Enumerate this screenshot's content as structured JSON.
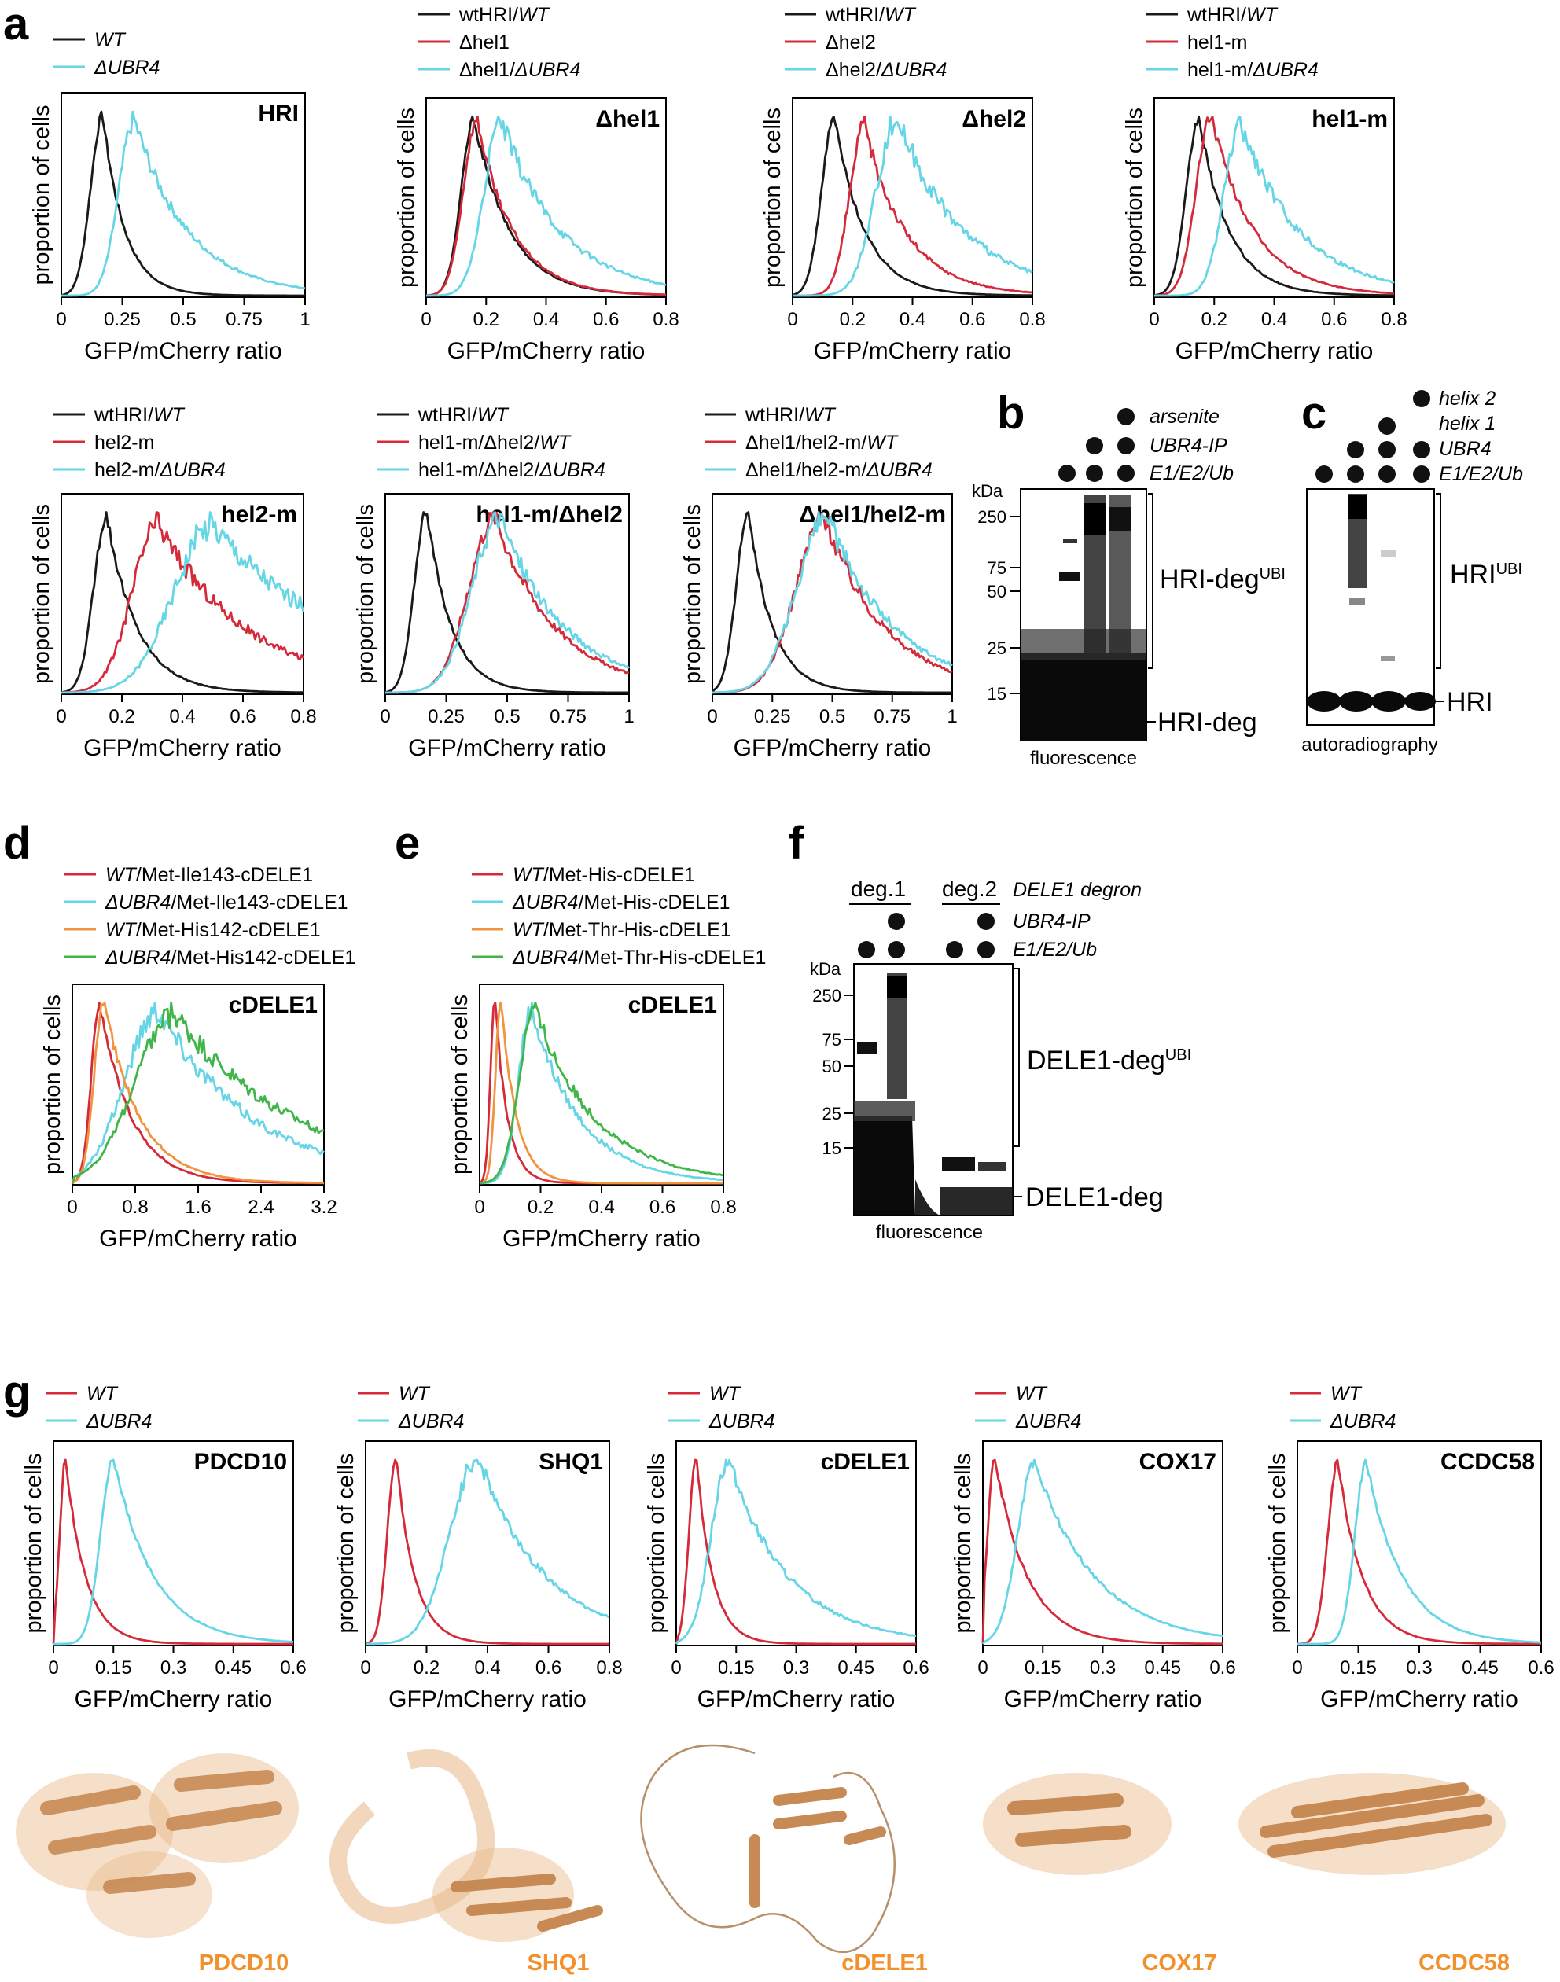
{
  "colors": {
    "black": "#1a1a1a",
    "red": "#d42a3a",
    "cyan": "#66d6e6",
    "orange": "#f0943e",
    "green": "#3fb54a",
    "protein": "#e8b787",
    "protein_label": "#f0912d"
  },
  "panel_letters": [
    "a",
    "b",
    "c",
    "d",
    "e",
    "f",
    "g"
  ],
  "common": {
    "ylabel": "proportion of cells",
    "xlabel": "GFP/mCherry ratio"
  },
  "chart_data": [
    {
      "id": "a1",
      "type": "line",
      "title": "HRI",
      "xlim": [
        0,
        1
      ],
      "ticks": [
        "0",
        "0.25",
        "0.5",
        "0.75",
        "1"
      ],
      "tickvals": [
        0,
        0.25,
        0.5,
        0.75,
        1
      ],
      "legend": [
        {
          "name": "WT",
          "italic": true
        },
        {
          "name": "ΔUBR4",
          "italic": true
        }
      ],
      "series": [
        {
          "name": "WT",
          "color": "black",
          "peak": 0.17,
          "w": 0.07,
          "tail": 0.09,
          "noise": 0.03
        },
        {
          "name": "ΔUBR4",
          "color": "cyan",
          "peak": 0.3,
          "w": 0.09,
          "tail": 0.22,
          "noise": 0.06
        }
      ]
    },
    {
      "id": "a2",
      "type": "line",
      "title": "Δhel1",
      "xlim": [
        0,
        0.8
      ],
      "ticks": [
        "0",
        "0.2",
        "0.4",
        "0.6",
        "0.8"
      ],
      "tickvals": [
        0,
        0.2,
        0.4,
        0.6,
        0.8
      ],
      "legend": [
        {
          "name": "wtHRI/WT"
        },
        {
          "name": "Δhel1"
        },
        {
          "name": "Δhel1/ΔUBR4"
        }
      ],
      "series": [
        {
          "name": "wtHRI/WT",
          "color": "black",
          "peak": 0.16,
          "w": 0.06,
          "tail": 0.12,
          "noise": 0.03
        },
        {
          "name": "Δhel1",
          "color": "red",
          "peak": 0.17,
          "w": 0.065,
          "tail": 0.12,
          "noise": 0.04
        },
        {
          "name": "Δhel1/ΔUBR4",
          "color": "cyan",
          "peak": 0.25,
          "w": 0.08,
          "tail": 0.2,
          "noise": 0.07
        }
      ]
    },
    {
      "id": "a3",
      "type": "line",
      "title": "Δhel2",
      "xlim": [
        0,
        0.8
      ],
      "ticks": [
        "0",
        "0.2",
        "0.4",
        "0.6",
        "0.8"
      ],
      "tickvals": [
        0,
        0.2,
        0.4,
        0.6,
        0.8
      ],
      "legend": [
        {
          "name": "wtHRI/WT"
        },
        {
          "name": "Δhel2"
        },
        {
          "name": "Δhel2/ΔUBR4"
        }
      ],
      "series": [
        {
          "name": "wtHRI/WT",
          "color": "black",
          "peak": 0.14,
          "w": 0.06,
          "tail": 0.1,
          "noise": 0.03
        },
        {
          "name": "Δhel2",
          "color": "red",
          "peak": 0.24,
          "w": 0.07,
          "tail": 0.14,
          "noise": 0.06
        },
        {
          "name": "Δhel2/ΔUBR4",
          "color": "cyan",
          "peak": 0.35,
          "w": 0.1,
          "tail": 0.22,
          "noise": 0.08
        }
      ]
    },
    {
      "id": "a4",
      "type": "line",
      "title": "hel1-m",
      "xlim": [
        0,
        0.8
      ],
      "ticks": [
        "0",
        "0.2",
        "0.4",
        "0.6",
        "0.8"
      ],
      "tickvals": [
        0,
        0.2,
        0.4,
        0.6,
        0.8
      ],
      "legend": [
        {
          "name": "wtHRI/WT"
        },
        {
          "name": "hel1-m"
        },
        {
          "name": "hel1-m/ΔUBR4"
        }
      ],
      "series": [
        {
          "name": "wtHRI/WT",
          "color": "black",
          "peak": 0.15,
          "w": 0.06,
          "tail": 0.1,
          "noise": 0.03
        },
        {
          "name": "hel1-m",
          "color": "red",
          "peak": 0.19,
          "w": 0.07,
          "tail": 0.14,
          "noise": 0.04
        },
        {
          "name": "hel1-m/ΔUBR4",
          "color": "cyan",
          "peak": 0.29,
          "w": 0.08,
          "tail": 0.2,
          "noise": 0.07
        }
      ]
    },
    {
      "id": "a5",
      "type": "line",
      "title": "hel2-m",
      "xlim": [
        0,
        0.8
      ],
      "ticks": [
        "0",
        "0.2",
        "0.4",
        "0.6",
        "0.8"
      ],
      "tickvals": [
        0,
        0.2,
        0.4,
        0.6,
        0.8
      ],
      "legend": [
        {
          "name": "wtHRI/WT"
        },
        {
          "name": "hel2-m"
        },
        {
          "name": "hel2-m/ΔUBR4",
          "italic_suffix": true
        }
      ],
      "series": [
        {
          "name": "wtHRI/WT",
          "color": "black",
          "peak": 0.15,
          "w": 0.06,
          "tail": 0.1,
          "noise": 0.04
        },
        {
          "name": "hel2-m",
          "color": "red",
          "peak": 0.32,
          "w": 0.12,
          "tail": 0.3,
          "noise": 0.08
        },
        {
          "name": "hel2-m/ΔUBR4",
          "color": "cyan",
          "peak": 0.5,
          "w": 0.18,
          "tail": 0.45,
          "noise": 0.09
        }
      ]
    },
    {
      "id": "a6",
      "type": "line",
      "title": "hel1-m/Δhel2",
      "xlim": [
        0,
        1
      ],
      "ticks": [
        "0",
        "0.25",
        "0.5",
        "0.75",
        "1"
      ],
      "tickvals": [
        0,
        0.25,
        0.5,
        0.75,
        1
      ],
      "legend": [
        {
          "name": "wtHRI/WT"
        },
        {
          "name": "hel1-m/Δhel2/WT"
        },
        {
          "name": "hel1-m/Δhel2/ΔUBR4"
        }
      ],
      "series": [
        {
          "name": "wtHRI/WT",
          "color": "black",
          "peak": 0.17,
          "w": 0.07,
          "tail": 0.1,
          "noise": 0.03
        },
        {
          "name": "hel1-m/Δhel2/WT",
          "color": "red",
          "peak": 0.45,
          "w": 0.15,
          "tail": 0.25,
          "noise": 0.06
        },
        {
          "name": "hel1-m/Δhel2/ΔUBR4",
          "color": "cyan",
          "peak": 0.47,
          "w": 0.16,
          "tail": 0.27,
          "noise": 0.07
        }
      ]
    },
    {
      "id": "a7",
      "type": "line",
      "title": "Δhel1/hel2-m",
      "xlim": [
        0,
        1
      ],
      "ticks": [
        "0",
        "0.25",
        "0.5",
        "0.75",
        "1"
      ],
      "tickvals": [
        0,
        0.25,
        0.5,
        0.75,
        1
      ],
      "legend": [
        {
          "name": "wtHRI/WT"
        },
        {
          "name": "Δhel1/hel2-m/WT"
        },
        {
          "name": "Δhel1/hel2-m/ΔUBR4"
        }
      ],
      "series": [
        {
          "name": "wtHRI/WT",
          "color": "black",
          "peak": 0.15,
          "w": 0.07,
          "tail": 0.1,
          "noise": 0.03
        },
        {
          "name": "Δhel1/hel2-m/WT",
          "color": "red",
          "peak": 0.47,
          "w": 0.17,
          "tail": 0.25,
          "noise": 0.07
        },
        {
          "name": "Δhel1/hel2-m/ΔUBR4",
          "color": "cyan",
          "peak": 0.48,
          "w": 0.18,
          "tail": 0.28,
          "noise": 0.07
        }
      ]
    },
    {
      "id": "d",
      "type": "line",
      "title": "cDELE1",
      "xlim": [
        0,
        3.2
      ],
      "ticks": [
        "0",
        "0.8",
        "1.6",
        "2.4",
        "3.2"
      ],
      "tickvals": [
        0,
        0.8,
        1.6,
        2.4,
        3.2
      ],
      "legend": [
        {
          "name": "WT/Met-Ile143-cDELE1"
        },
        {
          "name": "ΔUBR4/Met-Ile143-cDELE1"
        },
        {
          "name": "WT/Met-His142-cDELE1"
        },
        {
          "name": "ΔUBR4/Met-His142-cDELE1"
        }
      ],
      "series": [
        {
          "name": "WT/Met-Ile143-cDELE1",
          "color": "red",
          "peak": 0.35,
          "w": 0.15,
          "tail": 0.4,
          "noise": 0.04
        },
        {
          "name": "ΔUBR4/Met-Ile143-cDELE1",
          "color": "cyan",
          "peak": 1.1,
          "w": 0.6,
          "tail": 1.2,
          "noise": 0.08
        },
        {
          "name": "WT/Met-His142-cDELE1",
          "color": "orange",
          "peak": 0.4,
          "w": 0.17,
          "tail": 0.45,
          "noise": 0.04
        },
        {
          "name": "ΔUBR4/Met-His142-cDELE1",
          "color": "green",
          "peak": 1.3,
          "w": 0.7,
          "tail": 1.6,
          "noise": 0.08
        }
      ]
    },
    {
      "id": "e",
      "type": "line",
      "title": "cDELE1",
      "xlim": [
        0,
        0.8
      ],
      "ticks": [
        "0",
        "0.2",
        "0.4",
        "0.6",
        "0.8"
      ],
      "tickvals": [
        0,
        0.2,
        0.4,
        0.6,
        0.8
      ],
      "legend": [
        {
          "name": "WT/Met-His-cDELE1"
        },
        {
          "name": "ΔUBR4/Met-His-cDELE1"
        },
        {
          "name": "WT/Met-Thr-His-cDELE1"
        },
        {
          "name": "ΔUBR4/Met-Thr-His-cDELE1"
        }
      ],
      "series": [
        {
          "name": "WT/Met-His-cDELE1",
          "color": "red",
          "peak": 0.05,
          "w": 0.02,
          "tail": 0.04,
          "noise": 0.03
        },
        {
          "name": "ΔUBR4/Met-His-cDELE1",
          "color": "cyan",
          "peak": 0.17,
          "w": 0.06,
          "tail": 0.16,
          "noise": 0.06
        },
        {
          "name": "WT/Met-Thr-His-cDELE1",
          "color": "orange",
          "peak": 0.07,
          "w": 0.025,
          "tail": 0.05,
          "noise": 0.03
        },
        {
          "name": "ΔUBR4/Met-Thr-His-cDELE1",
          "color": "green",
          "peak": 0.18,
          "w": 0.07,
          "tail": 0.2,
          "noise": 0.06
        }
      ]
    },
    {
      "id": "g1",
      "type": "line",
      "title": "PDCD10",
      "xlim": [
        0,
        0.6
      ],
      "ticks": [
        "0",
        "0.15",
        "0.3",
        "0.45",
        "0.6"
      ],
      "tickvals": [
        0,
        0.15,
        0.3,
        0.45,
        0.6
      ],
      "legend": [
        {
          "name": "WT"
        },
        {
          "name": "ΔUBR4"
        }
      ],
      "series": [
        {
          "name": "WT",
          "color": "red",
          "peak": 0.03,
          "w": 0.02,
          "tail": 0.05,
          "noise": 0.02
        },
        {
          "name": "ΔUBR4",
          "color": "cyan",
          "peak": 0.15,
          "w": 0.045,
          "tail": 0.1,
          "noise": 0.02
        }
      ]
    },
    {
      "id": "g2",
      "type": "line",
      "title": "SHQ1",
      "xlim": [
        0,
        0.8
      ],
      "ticks": [
        "0",
        "0.2",
        "0.4",
        "0.6",
        "0.8"
      ],
      "tickvals": [
        0,
        0.2,
        0.4,
        0.6,
        0.8
      ],
      "legend": [
        {
          "name": "WT"
        },
        {
          "name": "ΔUBR4"
        }
      ],
      "series": [
        {
          "name": "WT",
          "color": "red",
          "peak": 0.1,
          "w": 0.04,
          "tail": 0.06,
          "noise": 0.02
        },
        {
          "name": "ΔUBR4",
          "color": "cyan",
          "peak": 0.37,
          "w": 0.13,
          "tail": 0.22,
          "noise": 0.05
        }
      ]
    },
    {
      "id": "g3",
      "type": "line",
      "title": "cDELE1",
      "xlim": [
        0,
        0.6
      ],
      "ticks": [
        "0",
        "0.15",
        "0.3",
        "0.45",
        "0.6"
      ],
      "tickvals": [
        0,
        0.15,
        0.3,
        0.45,
        0.6
      ],
      "legend": [
        {
          "name": "WT"
        },
        {
          "name": "ΔUBR4"
        }
      ],
      "series": [
        {
          "name": "WT",
          "color": "red",
          "peak": 0.05,
          "w": 0.025,
          "tail": 0.04,
          "noise": 0.02
        },
        {
          "name": "ΔUBR4",
          "color": "cyan",
          "peak": 0.13,
          "w": 0.06,
          "tail": 0.15,
          "noise": 0.05
        }
      ]
    },
    {
      "id": "g4",
      "type": "line",
      "title": "COX17",
      "xlim": [
        0,
        0.6
      ],
      "ticks": [
        "0",
        "0.15",
        "0.3",
        "0.45",
        "0.6"
      ],
      "tickvals": [
        0,
        0.15,
        0.3,
        0.45,
        0.6
      ],
      "legend": [
        {
          "name": "WT"
        },
        {
          "name": "ΔUBR4"
        }
      ],
      "series": [
        {
          "name": "WT",
          "color": "red",
          "peak": 0.03,
          "w": 0.025,
          "tail": 0.08,
          "noise": 0.02
        },
        {
          "name": "ΔUBR4",
          "color": "cyan",
          "peak": 0.13,
          "w": 0.06,
          "tail": 0.15,
          "noise": 0.03
        }
      ]
    },
    {
      "id": "g5",
      "type": "line",
      "title": "CCDC58",
      "xlim": [
        0,
        0.6
      ],
      "ticks": [
        "0",
        "0.15",
        "0.3",
        "0.45",
        "0.6"
      ],
      "tickvals": [
        0,
        0.15,
        0.3,
        0.45,
        0.6
      ],
      "legend": [
        {
          "name": "WT"
        },
        {
          "name": "ΔUBR4"
        }
      ],
      "series": [
        {
          "name": "WT",
          "color": "red",
          "peak": 0.1,
          "w": 0.035,
          "tail": 0.06,
          "noise": 0.02
        },
        {
          "name": "ΔUBR4",
          "color": "cyan",
          "peak": 0.17,
          "w": 0.04,
          "tail": 0.09,
          "noise": 0.03
        }
      ]
    }
  ],
  "gel_b": {
    "conditions": [
      "arsenite",
      "UBR4-IP",
      "E1/E2/Ub"
    ],
    "kda_label": "kDa",
    "markers": [
      "250",
      "75",
      "50",
      "25",
      "15"
    ],
    "bracket_label": "HRI-deg",
    "bracket_sup": "UBI",
    "band_label": "HRI-deg",
    "caption": "fluorescence"
  },
  "gel_c": {
    "conditions": [
      "helix 2",
      "helix 1",
      "UBR4",
      "E1/E2/Ub"
    ],
    "bracket_label": "HRI",
    "bracket_sup": "UBI",
    "band_label": "HRI",
    "caption": "autoradiography"
  },
  "gel_f": {
    "groups": [
      "deg.1",
      "deg.2"
    ],
    "conditions": [
      "DELE1 degron",
      "UBR4-IP",
      "E1/E2/Ub"
    ],
    "kda_label": "kDa",
    "markers": [
      "250",
      "75",
      "50",
      "25",
      "15"
    ],
    "bracket_label": "DELE1-deg",
    "bracket_sup": "UBI",
    "band_label": "DELE1-deg",
    "caption": "fluorescence"
  },
  "structures": [
    "PDCD10",
    "SHQ1",
    "cDELE1",
    "COX17",
    "CCDC58"
  ]
}
